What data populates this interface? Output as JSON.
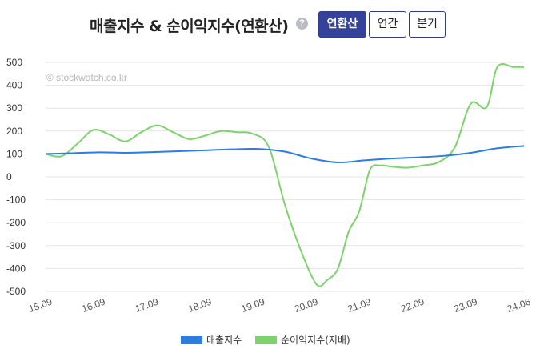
{
  "header": {
    "title": "매출지수 & 순이익지수(연환산)",
    "help_icon": "?",
    "buttons": [
      {
        "label": "연환산",
        "active": true
      },
      {
        "label": "연간",
        "active": false
      },
      {
        "label": "분기",
        "active": false
      }
    ]
  },
  "watermark": "© stockwatch.co.kr",
  "colors": {
    "sales": "#2a7de1",
    "profit": "#7dd36c",
    "grid": "#e6e6e6"
  },
  "chart_data": {
    "type": "line",
    "x_ticks": [
      "15.09",
      "16.09",
      "17.09",
      "18.09",
      "19.09",
      "20.09",
      "21.09",
      "22.09",
      "23.09",
      "24.06"
    ],
    "ylim": [
      -500,
      500
    ],
    "y_ticks": [
      500,
      400,
      300,
      200,
      100,
      0,
      -100,
      -200,
      -300,
      -400,
      -500
    ],
    "grid": true,
    "legend_position": "bottom",
    "series": [
      {
        "name": "매출지수",
        "x": [
          0,
          0.5,
          1,
          1.5,
          2,
          2.5,
          3,
          3.5,
          4,
          4.5,
          5,
          5.5,
          6,
          6.5,
          7,
          7.5,
          8,
          8.5,
          9
        ],
        "values": [
          100,
          103,
          107,
          105,
          108,
          112,
          116,
          120,
          122,
          110,
          80,
          63,
          72,
          80,
          85,
          92,
          105,
          125,
          135
        ]
      },
      {
        "name": "순이익지수(지배)",
        "x": [
          0,
          0.3,
          0.6,
          0.9,
          1.2,
          1.5,
          1.8,
          2.1,
          2.4,
          2.7,
          3.0,
          3.3,
          3.6,
          3.9,
          4.2,
          4.5,
          4.8,
          5.1,
          5.3,
          5.5,
          5.7,
          5.9,
          6.1,
          6.3,
          6.5,
          6.8,
          7.1,
          7.4,
          7.7,
          8.0,
          8.3,
          8.5,
          8.8,
          9.0
        ],
        "values": [
          100,
          90,
          145,
          205,
          185,
          155,
          195,
          225,
          195,
          165,
          180,
          200,
          195,
          188,
          130,
          -120,
          -320,
          -470,
          -450,
          -400,
          -240,
          -150,
          30,
          50,
          45,
          40,
          50,
          65,
          130,
          320,
          305,
          480,
          480,
          480
        ]
      }
    ]
  }
}
